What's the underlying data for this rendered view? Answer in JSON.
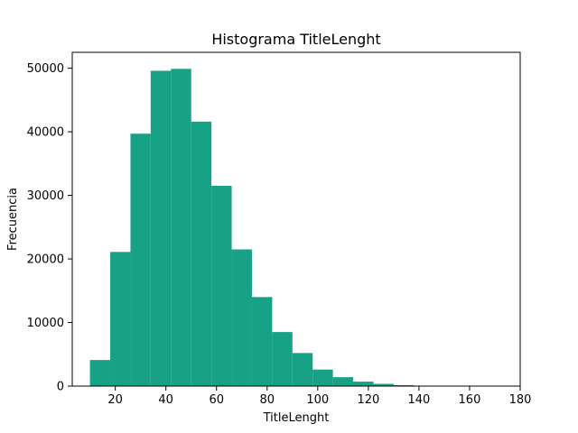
{
  "chart_data": {
    "type": "bar",
    "title": "Histograma TitleLenght",
    "xlabel": "TitleLenght",
    "ylabel": "Frecuencia",
    "xlim": [
      3,
      180
    ],
    "ylim": [
      0,
      52500
    ],
    "xticks": [
      20,
      40,
      60,
      80,
      100,
      120,
      140,
      160,
      180
    ],
    "yticks": [
      0,
      10000,
      20000,
      30000,
      40000,
      50000
    ],
    "grid": false,
    "bar_color": "#17a185",
    "bins": [
      {
        "x0": 10,
        "x1": 18,
        "value": 4100
      },
      {
        "x0": 18,
        "x1": 26,
        "value": 21100
      },
      {
        "x0": 26,
        "x1": 34,
        "value": 39700
      },
      {
        "x0": 34,
        "x1": 42,
        "value": 49600
      },
      {
        "x0": 42,
        "x1": 50,
        "value": 49900
      },
      {
        "x0": 50,
        "x1": 58,
        "value": 41600
      },
      {
        "x0": 58,
        "x1": 66,
        "value": 31500
      },
      {
        "x0": 66,
        "x1": 74,
        "value": 21500
      },
      {
        "x0": 74,
        "x1": 82,
        "value": 14000
      },
      {
        "x0": 82,
        "x1": 90,
        "value": 8500
      },
      {
        "x0": 90,
        "x1": 98,
        "value": 5200
      },
      {
        "x0": 98,
        "x1": 106,
        "value": 2600
      },
      {
        "x0": 106,
        "x1": 114,
        "value": 1400
      },
      {
        "x0": 114,
        "x1": 122,
        "value": 700
      },
      {
        "x0": 122,
        "x1": 130,
        "value": 350
      },
      {
        "x0": 130,
        "x1": 138,
        "value": 150
      },
      {
        "x0": 138,
        "x1": 146,
        "value": 70
      },
      {
        "x0": 146,
        "x1": 154,
        "value": 30
      },
      {
        "x0": 154,
        "x1": 162,
        "value": 15
      },
      {
        "x0": 162,
        "x1": 170,
        "value": 8
      }
    ]
  }
}
